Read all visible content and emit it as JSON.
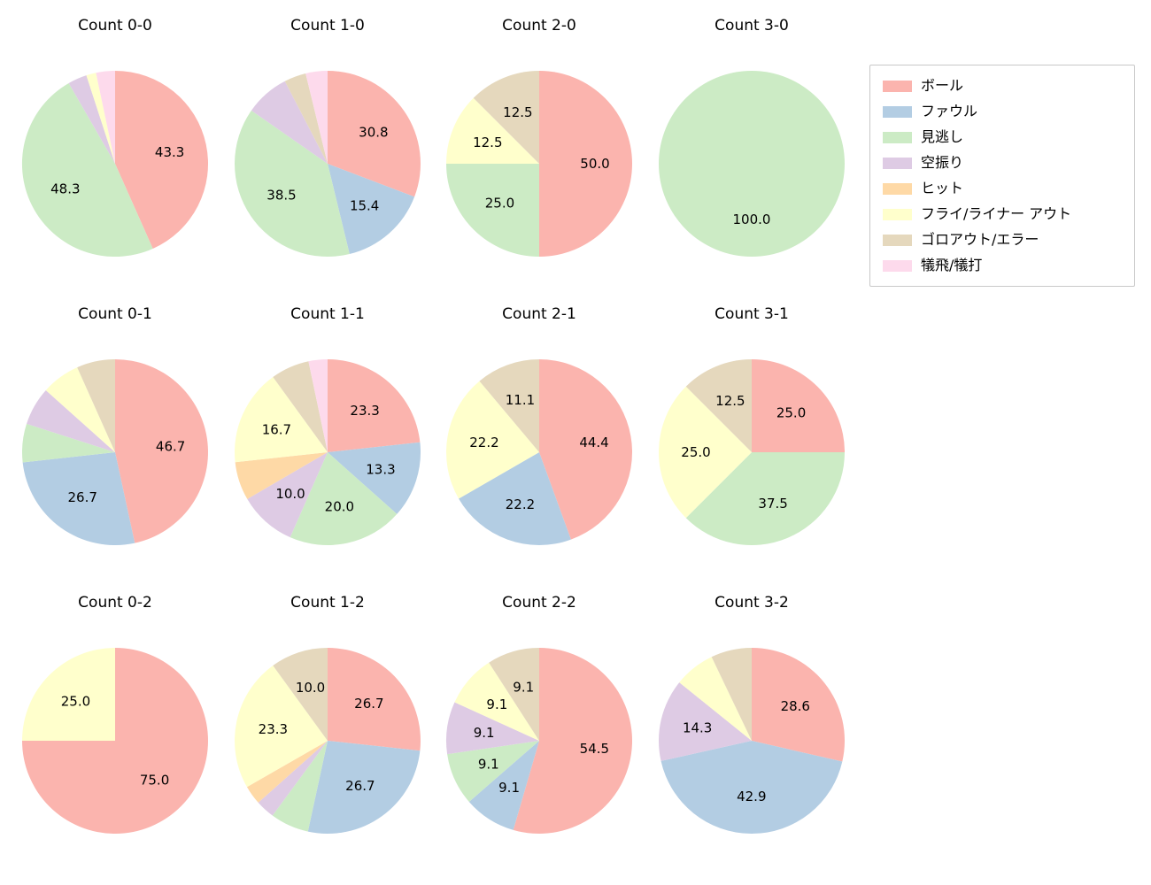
{
  "legend": {
    "items": [
      {
        "label": "ボール",
        "color": "#fbb4ae"
      },
      {
        "label": "ファウル",
        "color": "#b3cde3"
      },
      {
        "label": "見逃し",
        "color": "#ccebc5"
      },
      {
        "label": "空振り",
        "color": "#decbe4"
      },
      {
        "label": "ヒット",
        "color": "#fed9a6"
      },
      {
        "label": "フライ/ライナー アウト",
        "color": "#ffffcc"
      },
      {
        "label": "ゴロアウト/エラー",
        "color": "#e5d8bd"
      },
      {
        "label": "犠飛/犠打",
        "color": "#fddaec"
      }
    ]
  },
  "chart_data": [
    {
      "type": "pie",
      "title": "Count 0-0",
      "start_angle_deg": 90,
      "direction": "clockwise",
      "slices": [
        {
          "category": "ボール",
          "value": 43.3,
          "label": "43.3"
        },
        {
          "category": "見逃し",
          "value": 48.3,
          "label": "48.3"
        },
        {
          "category": "空振り",
          "value": 3.3,
          "label": ""
        },
        {
          "category": "フライ/ライナー アウト",
          "value": 1.7,
          "label": ""
        },
        {
          "category": "犠飛/犠打",
          "value": 3.3,
          "label": ""
        }
      ]
    },
    {
      "type": "pie",
      "title": "Count 1-0",
      "start_angle_deg": 90,
      "direction": "clockwise",
      "slices": [
        {
          "category": "ボール",
          "value": 30.8,
          "label": "30.8"
        },
        {
          "category": "ファウル",
          "value": 15.4,
          "label": "15.4"
        },
        {
          "category": "見逃し",
          "value": 38.5,
          "label": "38.5"
        },
        {
          "category": "空振り",
          "value": 7.7,
          "label": ""
        },
        {
          "category": "ゴロアウト/エラー",
          "value": 3.8,
          "label": ""
        },
        {
          "category": "犠飛/犠打",
          "value": 3.8,
          "label": ""
        }
      ]
    },
    {
      "type": "pie",
      "title": "Count 2-0",
      "start_angle_deg": 90,
      "direction": "clockwise",
      "slices": [
        {
          "category": "ボール",
          "value": 50.0,
          "label": "50.0"
        },
        {
          "category": "見逃し",
          "value": 25.0,
          "label": "25.0"
        },
        {
          "category": "フライ/ライナー アウト",
          "value": 12.5,
          "label": "12.5"
        },
        {
          "category": "ゴロアウト/エラー",
          "value": 12.5,
          "label": "12.5"
        }
      ]
    },
    {
      "type": "pie",
      "title": "Count 3-0",
      "start_angle_deg": 90,
      "direction": "clockwise",
      "slices": [
        {
          "category": "見逃し",
          "value": 100.0,
          "label": "100.0"
        }
      ]
    },
    {
      "type": "pie",
      "title": "Count 0-1",
      "start_angle_deg": 90,
      "direction": "clockwise",
      "slices": [
        {
          "category": "ボール",
          "value": 46.7,
          "label": "46.7"
        },
        {
          "category": "ファウル",
          "value": 26.7,
          "label": "26.7"
        },
        {
          "category": "見逃し",
          "value": 6.7,
          "label": ""
        },
        {
          "category": "空振り",
          "value": 6.7,
          "label": ""
        },
        {
          "category": "フライ/ライナー アウト",
          "value": 6.7,
          "label": ""
        },
        {
          "category": "ゴロアウト/エラー",
          "value": 6.7,
          "label": ""
        }
      ]
    },
    {
      "type": "pie",
      "title": "Count 1-1",
      "start_angle_deg": 90,
      "direction": "clockwise",
      "slices": [
        {
          "category": "ボール",
          "value": 23.3,
          "label": "23.3"
        },
        {
          "category": "ファウル",
          "value": 13.3,
          "label": "13.3"
        },
        {
          "category": "見逃し",
          "value": 20.0,
          "label": "20.0"
        },
        {
          "category": "空振り",
          "value": 10.0,
          "label": "10.0"
        },
        {
          "category": "ヒット",
          "value": 6.7,
          "label": ""
        },
        {
          "category": "フライ/ライナー アウト",
          "value": 16.7,
          "label": "16.7"
        },
        {
          "category": "ゴロアウト/エラー",
          "value": 6.7,
          "label": ""
        },
        {
          "category": "犠飛/犠打",
          "value": 3.3,
          "label": ""
        }
      ]
    },
    {
      "type": "pie",
      "title": "Count 2-1",
      "start_angle_deg": 90,
      "direction": "clockwise",
      "slices": [
        {
          "category": "ボール",
          "value": 44.4,
          "label": "44.4"
        },
        {
          "category": "ファウル",
          "value": 22.2,
          "label": "22.2"
        },
        {
          "category": "フライ/ライナー アウト",
          "value": 22.2,
          "label": "22.2"
        },
        {
          "category": "ゴロアウト/エラー",
          "value": 11.1,
          "label": "11.1"
        }
      ]
    },
    {
      "type": "pie",
      "title": "Count 3-1",
      "start_angle_deg": 90,
      "direction": "clockwise",
      "slices": [
        {
          "category": "ボール",
          "value": 25.0,
          "label": "25.0"
        },
        {
          "category": "見逃し",
          "value": 37.5,
          "label": "37.5"
        },
        {
          "category": "フライ/ライナー アウト",
          "value": 25.0,
          "label": "25.0"
        },
        {
          "category": "ゴロアウト/エラー",
          "value": 12.5,
          "label": "12.5"
        }
      ]
    },
    {
      "type": "pie",
      "title": "Count 0-2",
      "start_angle_deg": 90,
      "direction": "clockwise",
      "slices": [
        {
          "category": "ボール",
          "value": 75.0,
          "label": "75.0"
        },
        {
          "category": "フライ/ライナー アウト",
          "value": 25.0,
          "label": "25.0"
        }
      ]
    },
    {
      "type": "pie",
      "title": "Count 1-2",
      "start_angle_deg": 90,
      "direction": "clockwise",
      "slices": [
        {
          "category": "ボール",
          "value": 26.7,
          "label": "26.7"
        },
        {
          "category": "ファウル",
          "value": 26.7,
          "label": "26.7"
        },
        {
          "category": "見逃し",
          "value": 6.7,
          "label": ""
        },
        {
          "category": "空振り",
          "value": 3.3,
          "label": ""
        },
        {
          "category": "ヒット",
          "value": 3.3,
          "label": ""
        },
        {
          "category": "フライ/ライナー アウト",
          "value": 23.3,
          "label": "23.3"
        },
        {
          "category": "ゴロアウト/エラー",
          "value": 10.0,
          "label": "10.0"
        }
      ]
    },
    {
      "type": "pie",
      "title": "Count 2-2",
      "start_angle_deg": 90,
      "direction": "clockwise",
      "slices": [
        {
          "category": "ボール",
          "value": 54.5,
          "label": "54.5"
        },
        {
          "category": "ファウル",
          "value": 9.1,
          "label": "9.1"
        },
        {
          "category": "見逃し",
          "value": 9.1,
          "label": "9.1"
        },
        {
          "category": "空振り",
          "value": 9.1,
          "label": "9.1"
        },
        {
          "category": "フライ/ライナー アウト",
          "value": 9.1,
          "label": "9.1"
        },
        {
          "category": "ゴロアウト/エラー",
          "value": 9.1,
          "label": "9.1"
        }
      ]
    },
    {
      "type": "pie",
      "title": "Count 3-2",
      "start_angle_deg": 90,
      "direction": "clockwise",
      "slices": [
        {
          "category": "ボール",
          "value": 28.6,
          "label": "28.6"
        },
        {
          "category": "ファウル",
          "value": 42.9,
          "label": "42.9"
        },
        {
          "category": "空振り",
          "value": 14.3,
          "label": "14.3"
        },
        {
          "category": "フライ/ライナー アウト",
          "value": 7.1,
          "label": ""
        },
        {
          "category": "ゴロアウト/エラー",
          "value": 7.1,
          "label": ""
        }
      ]
    }
  ]
}
